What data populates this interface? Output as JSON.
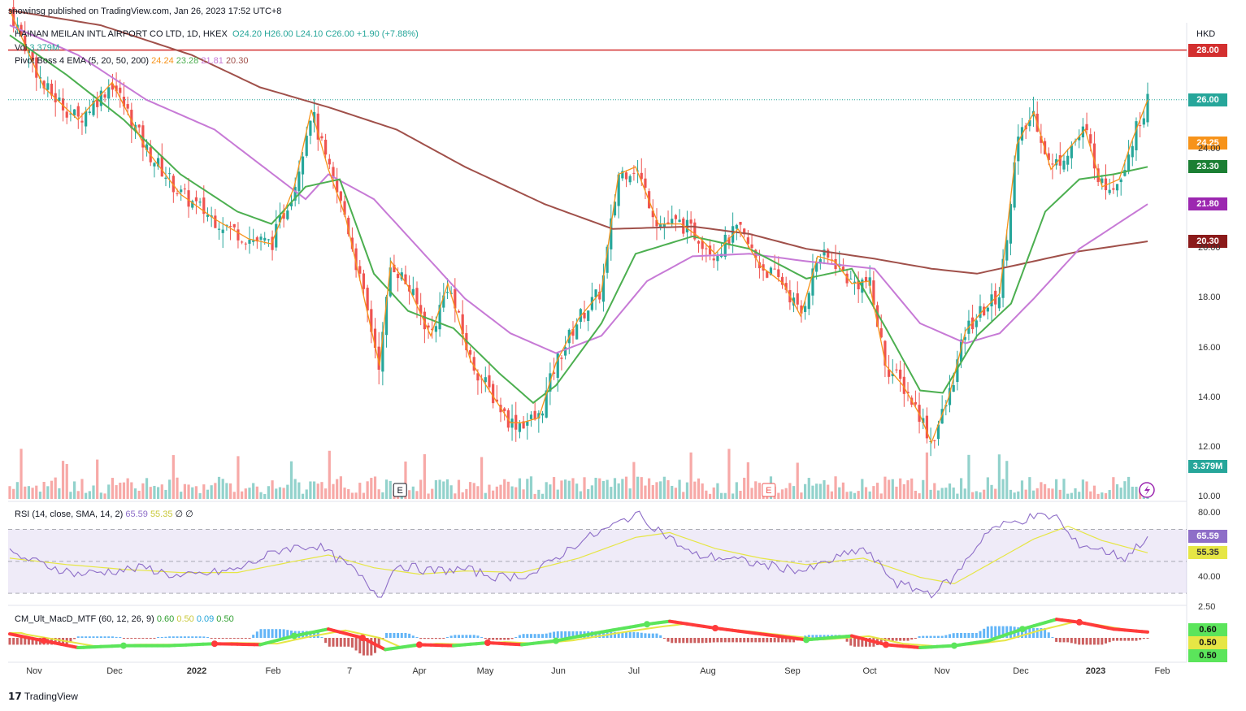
{
  "header": {
    "publisher": "snowinsg published on TradingView.com, Jan 26, 2023 17:52 UTC+8",
    "symbol": "HAINAN MEILAN INTL AIRPORT CO LTD, 1D, HKEX",
    "open": "O24.20",
    "high": "H26.00",
    "low": "L24.10",
    "close": "C26.00",
    "change": "+1.90 (+7.88%)",
    "vol_label": "Vol",
    "vol_value": "3.379M",
    "ema_label": "Pivot Boss 4 EMA (5, 20, 50, 200)",
    "ema_values": [
      "24.24",
      "23.28",
      "21.81",
      "20.30"
    ],
    "currency": "HKD"
  },
  "rsi_header": {
    "label": "RSI (14, close, SMA, 14, 2)",
    "rsi": "65.59",
    "sma": "55.35",
    "extra": "∅ ∅"
  },
  "macd_header": {
    "label": "CM_Ult_MacD_MTF (60, 12, 26, 9)",
    "values": [
      "0.60",
      "0.50",
      "0.09",
      "0.50"
    ]
  },
  "footer": {
    "brand": "TradingView"
  },
  "colors": {
    "up": "#26a69a",
    "down": "#ef5350",
    "ema5": "#f7931a",
    "ema20": "#4caf50",
    "ema50": "#c77ad6",
    "ema200": "#a0504a",
    "resistance": "#d32f2f",
    "rsi": "#8e6ec8",
    "rsi_sma": "#e6e645",
    "macd_up": "#5be55b",
    "macd_down": "#ff3b3b"
  },
  "chart_data": {
    "type": "candlestick",
    "x_labels": [
      "Nov",
      "Dec",
      "2022",
      "Feb",
      "7",
      "Apr",
      "May",
      "Jun",
      "Jul",
      "Aug",
      "Sep",
      "Oct",
      "Nov",
      "Dec",
      "2023",
      "Feb"
    ],
    "y_ticks": [
      "10.00",
      "12.00",
      "14.00",
      "16.00",
      "18.00",
      "20.00",
      "24.00"
    ],
    "y_range": [
      9.9,
      29.1
    ],
    "price_labels": [
      {
        "name": "resistance",
        "value": 28.0,
        "text": "28.00"
      },
      {
        "name": "last-close",
        "value": 26.0,
        "text": "26.00"
      },
      {
        "name": "ema5",
        "value": 24.25,
        "text": "24.25"
      },
      {
        "name": "ema20",
        "value": 23.3,
        "text": "23.30"
      },
      {
        "name": "ema50",
        "value": 21.8,
        "text": "21.80"
      },
      {
        "name": "ema200",
        "value": 20.3,
        "text": "20.30"
      }
    ],
    "volume_label": "3.379M",
    "earnings_markers": [
      {
        "x_frac": 0.343,
        "text": "E",
        "type": "up"
      },
      {
        "x_frac": 0.667,
        "text": "E",
        "type": "down"
      }
    ],
    "price_anchors": [
      [
        0,
        29.6
      ],
      [
        0.03,
        26.5
      ],
      [
        0.06,
        25.2
      ],
      [
        0.09,
        26.7
      ],
      [
        0.12,
        24.0
      ],
      [
        0.15,
        22.2
      ],
      [
        0.18,
        21.2
      ],
      [
        0.21,
        20.4
      ],
      [
        0.23,
        20.2
      ],
      [
        0.25,
        22.5
      ],
      [
        0.265,
        25.6
      ],
      [
        0.28,
        23.2
      ],
      [
        0.295,
        21.3
      ],
      [
        0.31,
        18.3
      ],
      [
        0.325,
        15.3
      ],
      [
        0.335,
        19.5
      ],
      [
        0.35,
        18.5
      ],
      [
        0.37,
        16.5
      ],
      [
        0.385,
        18.6
      ],
      [
        0.405,
        15.5
      ],
      [
        0.42,
        14.4
      ],
      [
        0.44,
        13.0
      ],
      [
        0.45,
        13.0
      ],
      [
        0.465,
        13.2
      ],
      [
        0.48,
        15.4
      ],
      [
        0.5,
        17.2
      ],
      [
        0.52,
        18.3
      ],
      [
        0.535,
        23.0
      ],
      [
        0.55,
        23.3
      ],
      [
        0.57,
        21.0
      ],
      [
        0.59,
        21.0
      ],
      [
        0.605,
        20.5
      ],
      [
        0.62,
        19.8
      ],
      [
        0.64,
        20.8
      ],
      [
        0.66,
        19.3
      ],
      [
        0.68,
        18.6
      ],
      [
        0.695,
        17.3
      ],
      [
        0.71,
        19.7
      ],
      [
        0.725,
        19.5
      ],
      [
        0.74,
        18.6
      ],
      [
        0.755,
        18.7
      ],
      [
        0.77,
        15.3
      ],
      [
        0.785,
        14.5
      ],
      [
        0.8,
        13.3
      ],
      [
        0.81,
        12.2
      ],
      [
        0.825,
        14.0
      ],
      [
        0.84,
        16.7
      ],
      [
        0.855,
        17.5
      ],
      [
        0.87,
        18.2
      ],
      [
        0.885,
        24.2
      ],
      [
        0.9,
        25.5
      ],
      [
        0.915,
        23.2
      ],
      [
        0.93,
        24.0
      ],
      [
        0.945,
        24.8
      ],
      [
        0.96,
        22.5
      ],
      [
        0.975,
        22.8
      ],
      [
        0.985,
        24.2
      ],
      [
        1.0,
        26.0
      ]
    ],
    "ema200_anchors": [
      [
        0,
        29.6
      ],
      [
        0.08,
        29.0
      ],
      [
        0.16,
        27.8
      ],
      [
        0.22,
        26.5
      ],
      [
        0.28,
        25.7
      ],
      [
        0.34,
        24.8
      ],
      [
        0.4,
        23.3
      ],
      [
        0.47,
        21.8
      ],
      [
        0.53,
        20.8
      ],
      [
        0.6,
        20.9
      ],
      [
        0.65,
        20.6
      ],
      [
        0.7,
        20.0
      ],
      [
        0.76,
        19.6
      ],
      [
        0.81,
        19.2
      ],
      [
        0.85,
        19.0
      ],
      [
        0.89,
        19.4
      ],
      [
        0.94,
        19.9
      ],
      [
        1.0,
        20.3
      ]
    ],
    "ema50_anchors": [
      [
        0,
        29.0
      ],
      [
        0.06,
        27.8
      ],
      [
        0.12,
        26.0
      ],
      [
        0.18,
        24.8
      ],
      [
        0.22,
        23.4
      ],
      [
        0.26,
        22.0
      ],
      [
        0.28,
        23.0
      ],
      [
        0.32,
        22.0
      ],
      [
        0.36,
        20.0
      ],
      [
        0.4,
        18.0
      ],
      [
        0.44,
        16.6
      ],
      [
        0.48,
        15.8
      ],
      [
        0.52,
        16.5
      ],
      [
        0.56,
        18.7
      ],
      [
        0.6,
        19.7
      ],
      [
        0.65,
        19.8
      ],
      [
        0.7,
        19.5
      ],
      [
        0.76,
        19.2
      ],
      [
        0.8,
        17.0
      ],
      [
        0.84,
        16.2
      ],
      [
        0.87,
        16.6
      ],
      [
        0.9,
        18.0
      ],
      [
        0.94,
        20.0
      ],
      [
        1.0,
        21.8
      ]
    ],
    "ema20_anchors": [
      [
        0,
        28.6
      ],
      [
        0.05,
        27.0
      ],
      [
        0.1,
        25.2
      ],
      [
        0.15,
        23.0
      ],
      [
        0.2,
        21.5
      ],
      [
        0.23,
        21.0
      ],
      [
        0.26,
        22.5
      ],
      [
        0.29,
        22.8
      ],
      [
        0.32,
        19.0
      ],
      [
        0.35,
        17.5
      ],
      [
        0.39,
        16.8
      ],
      [
        0.43,
        15.0
      ],
      [
        0.46,
        13.8
      ],
      [
        0.48,
        14.5
      ],
      [
        0.52,
        17.0
      ],
      [
        0.55,
        19.8
      ],
      [
        0.6,
        20.5
      ],
      [
        0.65,
        20.0
      ],
      [
        0.7,
        18.8
      ],
      [
        0.74,
        19.2
      ],
      [
        0.77,
        16.8
      ],
      [
        0.8,
        14.3
      ],
      [
        0.82,
        14.2
      ],
      [
        0.85,
        16.5
      ],
      [
        0.88,
        17.8
      ],
      [
        0.91,
        21.5
      ],
      [
        0.94,
        22.8
      ],
      [
        0.97,
        23.0
      ],
      [
        1.0,
        23.3
      ]
    ],
    "rsi_range": [
      25,
      85
    ],
    "rsi_levels": [
      70,
      50,
      30
    ],
    "rsi_ticks": [
      "80.00",
      "40.00"
    ],
    "rsi_labels": [
      {
        "value": 65.59,
        "text": "65.59"
      },
      {
        "value": 55.35,
        "text": "55.35"
      }
    ],
    "rsi_anchors": [
      [
        0,
        55
      ],
      [
        0.03,
        48
      ],
      [
        0.06,
        42
      ],
      [
        0.09,
        44
      ],
      [
        0.12,
        46
      ],
      [
        0.15,
        40
      ],
      [
        0.2,
        45
      ],
      [
        0.24,
        58
      ],
      [
        0.27,
        60
      ],
      [
        0.3,
        46
      ],
      [
        0.325,
        28
      ],
      [
        0.34,
        48
      ],
      [
        0.37,
        44
      ],
      [
        0.4,
        45
      ],
      [
        0.43,
        40
      ],
      [
        0.46,
        42
      ],
      [
        0.5,
        62
      ],
      [
        0.53,
        72
      ],
      [
        0.55,
        80
      ],
      [
        0.57,
        70
      ],
      [
        0.6,
        54
      ],
      [
        0.63,
        52
      ],
      [
        0.66,
        48
      ],
      [
        0.7,
        44
      ],
      [
        0.73,
        53
      ],
      [
        0.75,
        58
      ],
      [
        0.78,
        36
      ],
      [
        0.81,
        30
      ],
      [
        0.83,
        40
      ],
      [
        0.86,
        70
      ],
      [
        0.9,
        78
      ],
      [
        0.92,
        78
      ],
      [
        0.935,
        62
      ],
      [
        0.96,
        57
      ],
      [
        0.98,
        52
      ],
      [
        1.0,
        65.59
      ]
    ],
    "rsi_sma_anchors": [
      [
        0,
        52
      ],
      [
        0.05,
        48
      ],
      [
        0.1,
        45
      ],
      [
        0.15,
        43
      ],
      [
        0.2,
        43
      ],
      [
        0.25,
        50
      ],
      [
        0.28,
        54
      ],
      [
        0.32,
        46
      ],
      [
        0.36,
        42
      ],
      [
        0.4,
        44
      ],
      [
        0.45,
        43
      ],
      [
        0.5,
        52
      ],
      [
        0.55,
        65
      ],
      [
        0.58,
        68
      ],
      [
        0.62,
        58
      ],
      [
        0.66,
        52
      ],
      [
        0.7,
        48
      ],
      [
        0.75,
        52
      ],
      [
        0.8,
        40
      ],
      [
        0.83,
        36
      ],
      [
        0.86,
        48
      ],
      [
        0.9,
        64
      ],
      [
        0.93,
        72
      ],
      [
        0.96,
        63
      ],
      [
        1.0,
        55.35
      ]
    ],
    "macd_ticks": [
      "2.50"
    ],
    "macd_labels": [
      {
        "text": "0.60",
        "color": "#5be55b"
      },
      {
        "text": "0.50",
        "color": "#e6e645"
      },
      {
        "text": "0.50",
        "color": "#5be55b"
      }
    ],
    "macd_anchors": [
      [
        0,
        0.4
      ],
      [
        0.03,
        -0.3
      ],
      [
        0.06,
        -1.0
      ],
      [
        0.1,
        -0.8
      ],
      [
        0.14,
        -0.8
      ],
      [
        0.18,
        -0.6
      ],
      [
        0.22,
        -0.7
      ],
      [
        0.25,
        0.2
      ],
      [
        0.28,
        0.9
      ],
      [
        0.31,
        0.0
      ],
      [
        0.33,
        -1.2
      ],
      [
        0.36,
        -0.7
      ],
      [
        0.39,
        -0.8
      ],
      [
        0.42,
        -0.5
      ],
      [
        0.45,
        -0.7
      ],
      [
        0.48,
        -0.3
      ],
      [
        0.52,
        0.6
      ],
      [
        0.56,
        1.4
      ],
      [
        0.58,
        1.7
      ],
      [
        0.62,
        1.0
      ],
      [
        0.66,
        0.4
      ],
      [
        0.7,
        -0.2
      ],
      [
        0.74,
        0.2
      ],
      [
        0.77,
        -0.7
      ],
      [
        0.8,
        -1.0
      ],
      [
        0.83,
        -0.8
      ],
      [
        0.86,
        -0.3
      ],
      [
        0.89,
        0.9
      ],
      [
        0.92,
        1.9
      ],
      [
        0.94,
        1.6
      ],
      [
        0.97,
        0.9
      ],
      [
        1.0,
        0.6
      ]
    ]
  }
}
